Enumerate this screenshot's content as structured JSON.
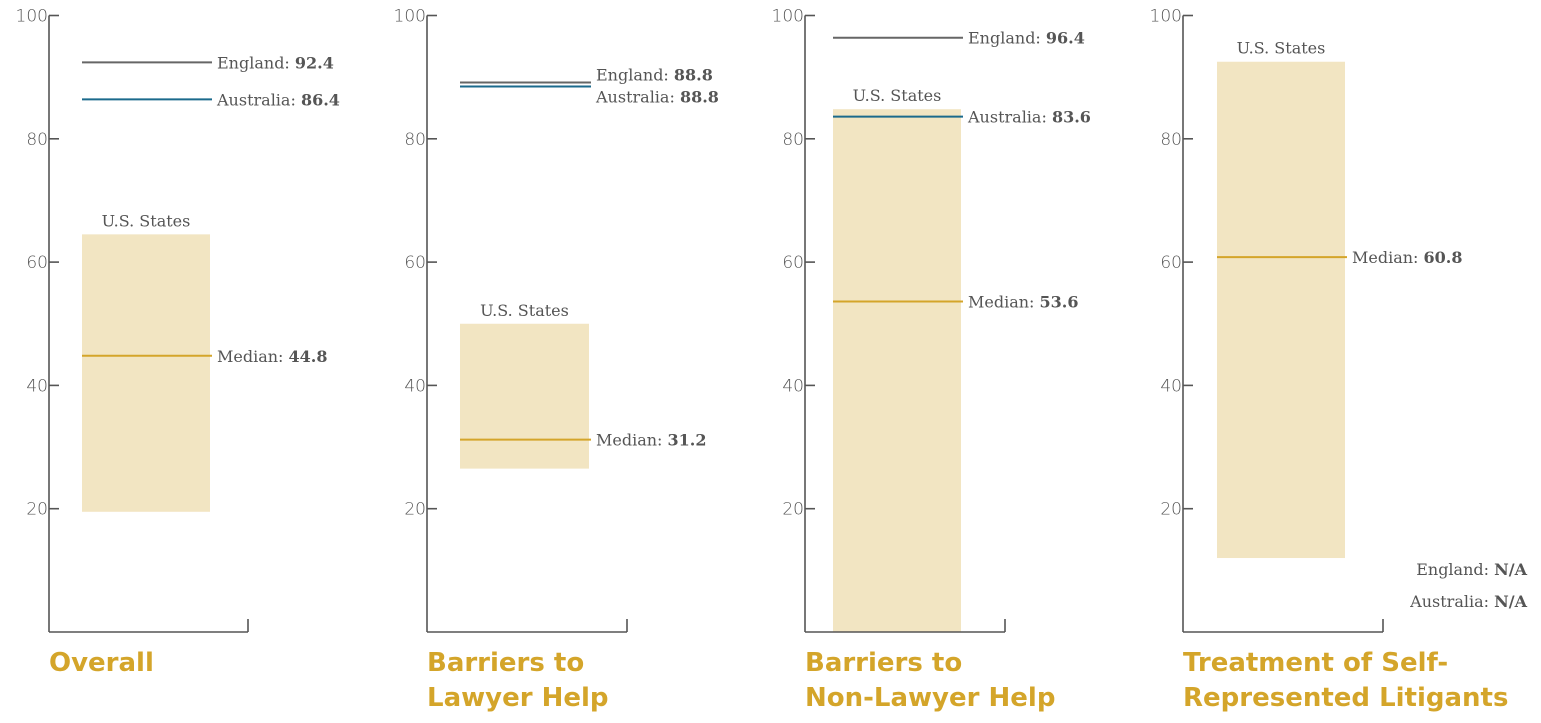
{
  "colors": {
    "range_fill": "#F2E5C2",
    "median": "#D4A52A",
    "england": "#666666",
    "australia": "#1B6A8C",
    "axis": "#555555",
    "title": "#D4A52A"
  },
  "chart_data": [
    {
      "type": "range",
      "title_lines": [
        "Overall"
      ],
      "ylim": [
        0,
        100
      ],
      "ticks": [
        "20",
        "40",
        "60",
        "80",
        "100"
      ],
      "range_label": "U.S. States",
      "us_states_range": [
        19.5,
        64.5
      ],
      "median": {
        "label": "Median: ",
        "value": "44.8",
        "y": 44.8
      },
      "england": {
        "label": "England: ",
        "value": "92.4",
        "y": 92.4
      },
      "australia": {
        "label": "Australia: ",
        "value": "86.4",
        "y": 86.4
      }
    },
    {
      "type": "range",
      "title_lines": [
        "Barriers to",
        "Lawyer Help"
      ],
      "ylim": [
        0,
        100
      ],
      "ticks": [
        "20",
        "40",
        "60",
        "80",
        "100"
      ],
      "range_label": "U.S. States",
      "us_states_range": [
        26.5,
        50
      ],
      "median": {
        "label": "Median: ",
        "value": "31.2",
        "y": 31.2
      },
      "england": {
        "label": "England: ",
        "value": "88.8",
        "y": 88.8
      },
      "australia": {
        "label": "Australia: ",
        "value": "88.8",
        "y": 88.8
      }
    },
    {
      "type": "range",
      "title_lines": [
        "Barriers to",
        "Non-Lawyer Help"
      ],
      "ylim": [
        0,
        100
      ],
      "ticks": [
        "20",
        "40",
        "60",
        "80",
        "100"
      ],
      "range_label": "U.S. States",
      "us_states_range": [
        0,
        84.8
      ],
      "median": {
        "label": "Median: ",
        "value": "53.6",
        "y": 53.6
      },
      "england": {
        "label": "England: ",
        "value": "96.4",
        "y": 96.4
      },
      "australia": {
        "label": "Australia: ",
        "value": "83.6",
        "y": 83.6
      }
    },
    {
      "type": "range",
      "title_lines": [
        "Treatment of Self-",
        "Represented Litigants"
      ],
      "ylim": [
        0,
        100
      ],
      "ticks": [
        "20",
        "40",
        "60",
        "80",
        "100"
      ],
      "range_label": "U.S. States",
      "us_states_range": [
        12,
        92.5
      ],
      "median": {
        "label": "Median: ",
        "value": "60.8",
        "y": 60.8
      },
      "england": {
        "label": "England: ",
        "value": "N/A",
        "y": null
      },
      "australia": {
        "label": "Australia: ",
        "value": "N/A",
        "y": null
      }
    }
  ]
}
